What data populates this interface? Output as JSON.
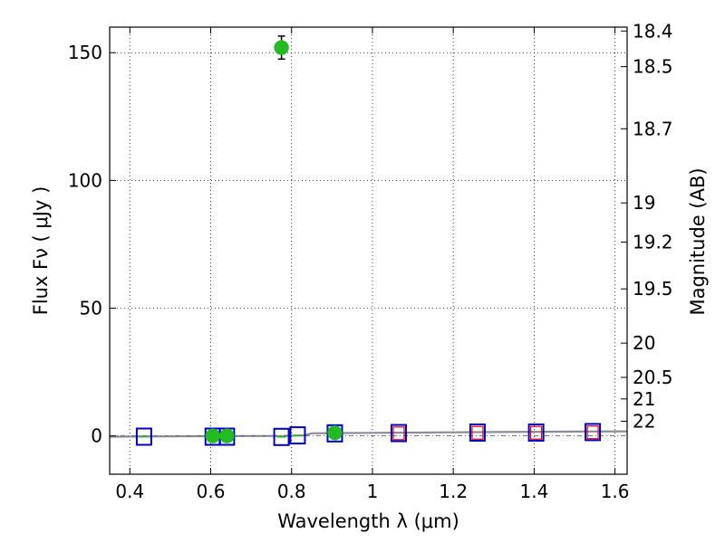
{
  "chart_data": {
    "type": "scatter",
    "xlabel": "Wavelength  λ (μm)",
    "ylabel": "Flux  Fν  ( μJy )",
    "ylabel_right": "Magnitude (AB)",
    "xlim": [
      0.35,
      1.63
    ],
    "ylim": [
      -15,
      160
    ],
    "grid": true,
    "x_ticks": [
      0.4,
      0.6,
      0.8,
      1.0,
      1.2,
      1.4,
      1.6
    ],
    "x_tick_labels": [
      "0.4",
      "0.6",
      "0.8",
      "1",
      "1.2",
      "1.4",
      "1.6"
    ],
    "y_ticks": [
      0,
      50,
      100,
      150
    ],
    "y_tick_labels": [
      "0",
      "50",
      "100",
      "150"
    ],
    "mag_ticks": [
      {
        "label": "18.4",
        "mag": 18.4
      },
      {
        "label": "18.5",
        "mag": 18.5
      },
      {
        "label": "18.7",
        "mag": 18.7
      },
      {
        "label": "19",
        "mag": 19.0
      },
      {
        "label": "19.2",
        "mag": 19.2
      },
      {
        "label": "19.5",
        "mag": 19.5
      },
      {
        "label": "20",
        "mag": 20.0
      },
      {
        "label": "20.5",
        "mag": 20.5
      },
      {
        "label": "21",
        "mag": 21.0
      },
      {
        "label": "22",
        "mag": 22.0
      }
    ],
    "series": [
      {
        "marker": "circle",
        "color": "#22bb22",
        "points": [
          {
            "x": 0.605,
            "y": 0,
            "err": 1.0
          },
          {
            "x": 0.64,
            "y": 0,
            "err": 1.0
          },
          {
            "x": 0.775,
            "y": 152,
            "err": 4.5
          },
          {
            "x": 0.907,
            "y": 1.2,
            "err": 1.5
          }
        ]
      },
      {
        "marker": "square-open",
        "color": "#0000cc",
        "points": [
          {
            "x": 0.435,
            "y": -0.3
          },
          {
            "x": 0.605,
            "y": -0.3
          },
          {
            "x": 0.64,
            "y": -0.3
          },
          {
            "x": 0.775,
            "y": -0.4
          },
          {
            "x": 0.815,
            "y": 0.2
          },
          {
            "x": 0.907,
            "y": 1.0
          },
          {
            "x": 1.065,
            "y": 1.1
          },
          {
            "x": 1.26,
            "y": 1.3
          },
          {
            "x": 1.405,
            "y": 1.3
          },
          {
            "x": 1.545,
            "y": 1.5
          }
        ]
      },
      {
        "marker": "rect-open",
        "color": "#ee0000",
        "points": [
          {
            "x": 1.065,
            "y": 1.0
          },
          {
            "x": 1.26,
            "y": 1.2
          },
          {
            "x": 1.405,
            "y": 1.2
          },
          {
            "x": 1.545,
            "y": 1.4
          }
        ]
      },
      {
        "marker": "dash",
        "color": "#22bb22",
        "points": [
          {
            "x": 0.435,
            "y": -0.3
          },
          {
            "x": 0.605,
            "y": -0.3
          },
          {
            "x": 0.64,
            "y": -0.3
          },
          {
            "x": 0.775,
            "y": -0.4
          },
          {
            "x": 0.815,
            "y": 0.2
          }
        ]
      }
    ],
    "model_curve": {
      "color": "#8c8c99",
      "x": [
        0.35,
        0.5,
        0.65,
        0.78,
        0.83,
        0.85,
        0.9,
        1.0,
        1.1,
        1.2,
        1.3,
        1.4,
        1.5,
        1.63
      ],
      "y": [
        -0.3,
        -0.2,
        -0.1,
        0.0,
        0.2,
        1.0,
        1.1,
        1.2,
        1.3,
        1.4,
        1.5,
        1.6,
        1.7,
        1.8
      ]
    }
  }
}
